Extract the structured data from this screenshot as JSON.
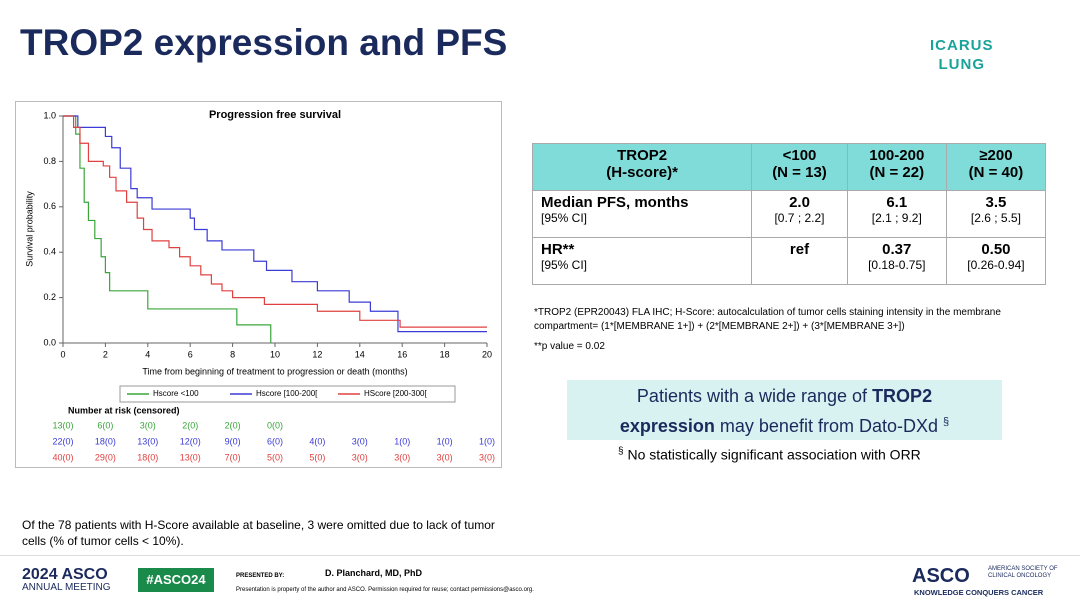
{
  "title": "TROP2 expression and PFS",
  "logo": [
    "ICARUS",
    "LUNG"
  ],
  "chart_data": {
    "type": "line",
    "step": true,
    "title": "Progression free survival",
    "xlabel": "Time from beginning of treatment to progression or death (months)",
    "ylabel": "Survival probability",
    "xlim": [
      0,
      20
    ],
    "xticks": [
      0,
      2,
      4,
      6,
      8,
      10,
      12,
      14,
      16,
      18,
      20
    ],
    "ylim": [
      0,
      1
    ],
    "yticks": [
      {
        "value": 0,
        "label": "0.0"
      },
      0.2,
      0.4,
      0.6,
      0.8,
      {
        "value": 1,
        "label": "1.0"
      }
    ],
    "series": [
      {
        "name": "Hscore <100",
        "color": "#3aa63a",
        "x": [
          0,
          0.6,
          0.8,
          1.0,
          1.2,
          1.5,
          1.8,
          2.0,
          2.2,
          4.0,
          8.2,
          9.8
        ],
        "values": [
          1.0,
          0.92,
          0.77,
          0.62,
          0.54,
          0.46,
          0.38,
          0.31,
          0.23,
          0.15,
          0.08,
          0.0
        ]
      },
      {
        "name": "Hscore [100-200[",
        "color": "#3b3bd6",
        "x": [
          0,
          0.7,
          2.0,
          2.3,
          2.7,
          3.2,
          3.5,
          4.2,
          6.0,
          6.2,
          6.8,
          7.5,
          9.0,
          9.6,
          10.8,
          12.0,
          13.5,
          14.5,
          15.8,
          20
        ],
        "values": [
          1.0,
          0.95,
          0.91,
          0.86,
          0.77,
          0.68,
          0.64,
          0.59,
          0.55,
          0.5,
          0.45,
          0.41,
          0.36,
          0.32,
          0.27,
          0.23,
          0.18,
          0.14,
          0.05,
          0.05
        ]
      },
      {
        "name": "HScore [200-300[",
        "color": "#e04040",
        "x": [
          0,
          0.5,
          0.8,
          1.2,
          1.9,
          2.2,
          2.5,
          3.0,
          3.5,
          3.8,
          4.2,
          5.0,
          5.5,
          6.0,
          6.5,
          7.0,
          7.5,
          8.0,
          9.5,
          12.0,
          14.0,
          15.9,
          20
        ],
        "values": [
          1.0,
          0.95,
          0.88,
          0.8,
          0.78,
          0.73,
          0.67,
          0.62,
          0.55,
          0.5,
          0.45,
          0.42,
          0.38,
          0.34,
          0.3,
          0.26,
          0.23,
          0.2,
          0.17,
          0.14,
          0.1,
          0.07,
          0.07
        ]
      }
    ],
    "risk_table": {
      "title": "Number at risk (censored)",
      "rows": [
        [
          "13(0)",
          "6(0)",
          "3(0)",
          "2(0)",
          "2(0)",
          "0(0)"
        ],
        [
          "22(0)",
          "18(0)",
          "13(0)",
          "12(0)",
          "9(0)",
          "6(0)",
          "4(0)",
          "3(0)",
          "1(0)",
          "1(0)",
          "1(0)"
        ],
        [
          "40(0)",
          "29(0)",
          "18(0)",
          "13(0)",
          "7(0)",
          "5(0)",
          "5(0)",
          "3(0)",
          "3(0)",
          "3(0)",
          "3(0)"
        ]
      ]
    }
  },
  "table": {
    "rows": [
      [
        [
          "TROP2",
          "(H-score)*"
        ],
        [
          "<100",
          "(N = 13)"
        ],
        [
          "100-200",
          "(N = 22)"
        ],
        [
          "≥200",
          "(N = 40)"
        ]
      ],
      [
        [
          "Median PFS, months",
          "[95% CI]"
        ],
        [
          "2.0",
          "[0.7 ; 2.2]"
        ],
        [
          "6.1",
          "[2.1 ; 9.2]"
        ],
        [
          "3.5",
          "[2.6 ; 5.5]"
        ]
      ],
      [
        [
          "HR**",
          "[95% CI]"
        ],
        [
          "ref"
        ],
        [
          "0.37",
          "[0.18-0.75]"
        ],
        [
          "0.50",
          "[0.26-0.94]"
        ]
      ]
    ]
  },
  "footnotes": [
    "*TROP2 (EPR20043) FLA IHC; H-Score: autocalculation of tumor cells staining intensity in the membrane compartment= (1*[MEMBRANE 1+]) + (2*[MEMBRANE 2+]) + (3*[MEMBRANE 3+])",
    "**p value = 0.02"
  ],
  "callout": [
    "Patients with a wide range of ",
    "TROP2",
    "expression",
    " may benefit from Dato-DXd ",
    "§"
  ],
  "callout_note": [
    "§",
    "No statistically significant association with ORR"
  ],
  "bottom_note": "Of the 78 patients with H-Score available at baseline, 3 were omitted due to lack of tumor cells (% of tumor cells < 10%).",
  "footer": {
    "meeting": [
      "2024 ASCO",
      "ANNUAL MEETING"
    ],
    "hashtag": "#ASCO24",
    "presented_by": "PRESENTED BY:",
    "presenter": "D. Planchard, MD, PhD",
    "disclaimer": "Presentation is property of the author and ASCO. Permission required for reuse; contact permissions@asco.org.",
    "asco": [
      "ASCO",
      "AMERICAN SOCIETY OF CLINICAL ONCOLOGY",
      "KNOWLEDGE CONQUERS CANCER"
    ]
  }
}
